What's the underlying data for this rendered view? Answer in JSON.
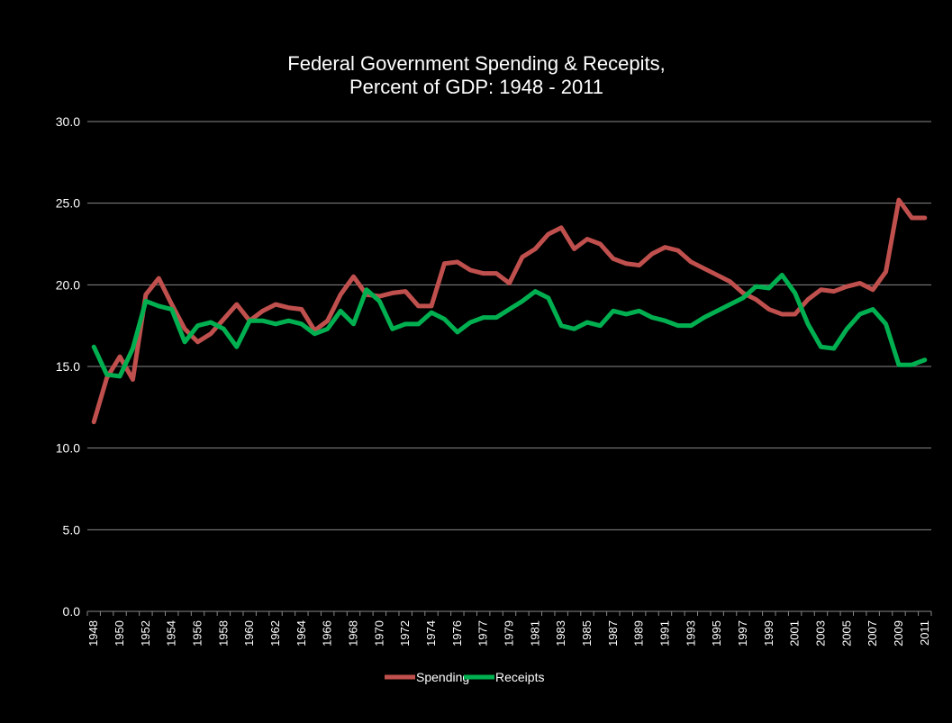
{
  "chart_data": {
    "type": "line",
    "title": [
      "Federal Government Spending & Recepits,",
      "Percent of GDP: 1948 - 2011"
    ],
    "xlabel": "",
    "ylabel": "",
    "ylim": [
      0,
      30
    ],
    "yticks": [
      "0.0",
      "5.0",
      "10.0",
      "15.0",
      "20.0",
      "25.0",
      "30.0"
    ],
    "grid": "horizontal",
    "legend": "bottom",
    "x": [
      "1948",
      "1949",
      "1950",
      "1951",
      "1952",
      "1953",
      "1954",
      "1955",
      "1956",
      "1957",
      "1958",
      "1959",
      "1960",
      "1961",
      "1962",
      "1963",
      "1964",
      "1965",
      "1966",
      "1967",
      "1968",
      "1969",
      "1970",
      "1971",
      "1972",
      "1973",
      "1974",
      "1975",
      "1976",
      "1976",
      "1977",
      "1978",
      "1979",
      "1980",
      "1981",
      "1982",
      "1983",
      "1984",
      "1985",
      "1986",
      "1987",
      "1988",
      "1989",
      "1990",
      "1991",
      "1992",
      "1993",
      "1994",
      "1995",
      "1996",
      "1997",
      "1998",
      "1999",
      "2000",
      "2001",
      "2002",
      "2003",
      "2004",
      "2005",
      "2006",
      "2007",
      "2008",
      "2009",
      "2010",
      "2011"
    ],
    "xtick_labels": [
      "1948",
      "1950",
      "1952",
      "1954",
      "1956",
      "1958",
      "1960",
      "1962",
      "1964",
      "1966",
      "1968",
      "1970",
      "1972",
      "1974",
      "1976",
      "1977",
      "1979",
      "1981",
      "1983",
      "1985",
      "1987",
      "1989",
      "1991",
      "1993",
      "1995",
      "1997",
      "1999",
      "2001",
      "2003",
      "2005",
      "2007",
      "2009",
      "2011"
    ],
    "series": [
      {
        "name": "Spending",
        "color": "#c0504d",
        "values": [
          11.6,
          14.3,
          15.6,
          14.2,
          19.4,
          20.4,
          18.8,
          17.3,
          16.5,
          17.0,
          17.9,
          18.8,
          17.8,
          18.4,
          18.8,
          18.6,
          18.5,
          17.2,
          17.8,
          19.4,
          20.5,
          19.4,
          19.3,
          19.5,
          19.6,
          18.7,
          18.7,
          21.3,
          21.4,
          20.9,
          20.7,
          20.7,
          20.1,
          21.7,
          22.2,
          23.1,
          23.5,
          22.2,
          22.8,
          22.5,
          21.6,
          21.3,
          21.2,
          21.9,
          22.3,
          22.1,
          21.4,
          21.0,
          20.6,
          20.2,
          19.5,
          19.1,
          18.5,
          18.2,
          18.2,
          19.1,
          19.7,
          19.6,
          19.9,
          20.1,
          19.7,
          20.8,
          25.2,
          24.1,
          24.1
        ]
      },
      {
        "name": "Receipts",
        "color": "#00b050",
        "values": [
          16.2,
          14.5,
          14.4,
          16.1,
          19.0,
          18.7,
          18.5,
          16.5,
          17.5,
          17.7,
          17.3,
          16.2,
          17.8,
          17.8,
          17.6,
          17.8,
          17.6,
          17.0,
          17.3,
          18.4,
          17.6,
          19.7,
          19.0,
          17.3,
          17.6,
          17.6,
          18.3,
          17.9,
          17.1,
          17.7,
          18.0,
          18.0,
          18.5,
          19.0,
          19.6,
          19.2,
          17.5,
          17.3,
          17.7,
          17.5,
          18.4,
          18.2,
          18.4,
          18.0,
          17.8,
          17.5,
          17.5,
          18.0,
          18.4,
          18.8,
          19.2,
          19.9,
          19.8,
          20.6,
          19.5,
          17.6,
          16.2,
          16.1,
          17.3,
          18.2,
          18.5,
          17.6,
          15.1,
          15.1,
          15.4
        ]
      }
    ]
  }
}
